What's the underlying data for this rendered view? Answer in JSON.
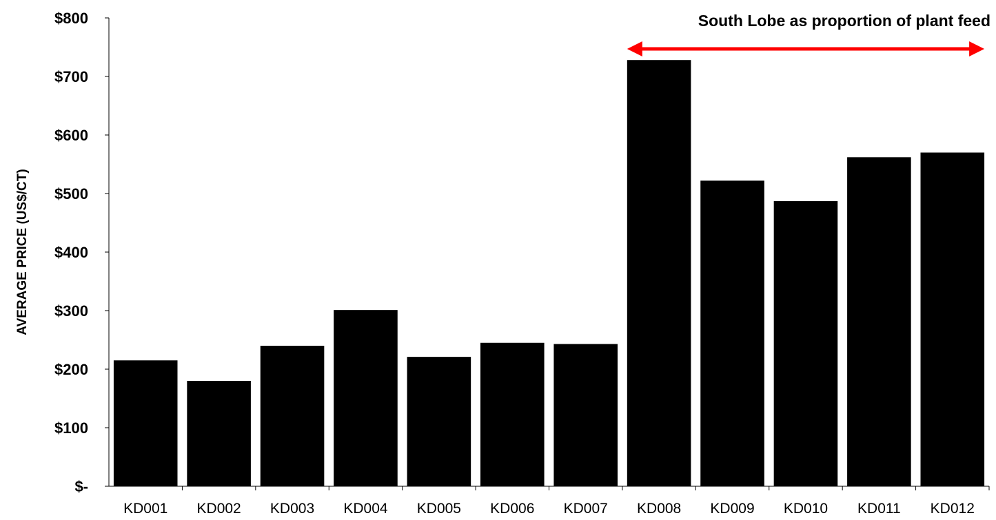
{
  "chart_data": {
    "type": "bar",
    "title": "",
    "xlabel": "",
    "ylabel": "AVERAGE PRICE (US$/CT)",
    "ylim": [
      0,
      800
    ],
    "yticks": [
      {
        "value": 0,
        "label": "$-"
      },
      {
        "value": 100,
        "label": "$100"
      },
      {
        "value": 200,
        "label": "$200"
      },
      {
        "value": 300,
        "label": "$300"
      },
      {
        "value": 400,
        "label": "$400"
      },
      {
        "value": 500,
        "label": "$500"
      },
      {
        "value": 600,
        "label": "$600"
      },
      {
        "value": 700,
        "label": "$700"
      },
      {
        "value": 800,
        "label": "$800"
      }
    ],
    "categories": [
      "KD001",
      "KD002",
      "KD003",
      "KD004",
      "KD005",
      "KD006",
      "KD007",
      "KD008",
      "KD009",
      "KD010",
      "KD011",
      "KD012"
    ],
    "values": [
      215,
      180,
      240,
      301,
      221,
      245,
      243,
      728,
      522,
      487,
      562,
      570
    ],
    "bar_color": "#000000",
    "grid": false,
    "legend": "none",
    "annotation": {
      "text": "South Lobe as proportion of plant feed",
      "arrow_color": "#ff0000",
      "span_from": "KD008",
      "span_to": "KD012"
    }
  }
}
